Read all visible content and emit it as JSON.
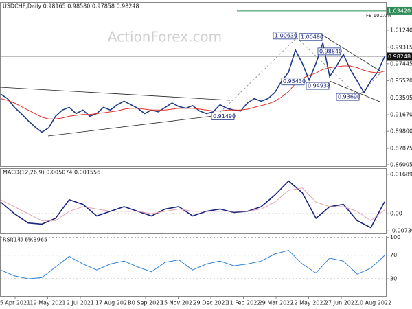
{
  "chart_data": [
    {
      "type": "line",
      "title": "USDCHF,Daily  0.98165 0.98580 0.97858 0.98248",
      "watermark": "ActionForex.com",
      "series": [
        {
          "name": "USDCHF",
          "color": "#1f3a8a",
          "values": [
            0.94,
            0.935,
            0.925,
            0.918,
            0.91,
            0.903,
            0.897,
            0.902,
            0.915,
            0.922,
            0.925,
            0.918,
            0.922,
            0.915,
            0.918,
            0.925,
            0.922,
            0.928,
            0.932,
            0.928,
            0.924,
            0.918,
            0.922,
            0.92,
            0.925,
            0.93,
            0.926,
            0.924,
            0.927,
            0.921,
            0.918,
            0.92,
            0.928,
            0.924,
            0.922,
            0.921,
            0.93,
            0.935,
            0.932,
            0.935,
            0.942,
            0.955,
            0.965,
            0.99,
            0.975,
            0.956,
            0.975,
            0.998,
            0.96,
            0.972,
            0.985,
            0.968,
            0.955,
            0.942,
            0.955,
            0.965,
            0.98248
          ]
        },
        {
          "name": "MA",
          "color": "#e0302a",
          "values": [
            0.935,
            0.933,
            0.93,
            0.926,
            0.922,
            0.918,
            0.914,
            0.912,
            0.912,
            0.913,
            0.915,
            0.916,
            0.917,
            0.917,
            0.918,
            0.919,
            0.92,
            0.921,
            0.923,
            0.924,
            0.924,
            0.923,
            0.922,
            0.922,
            0.922,
            0.923,
            0.924,
            0.924,
            0.924,
            0.923,
            0.922,
            0.921,
            0.921,
            0.922,
            0.922,
            0.922,
            0.923,
            0.925,
            0.927,
            0.929,
            0.932,
            0.937,
            0.943,
            0.952,
            0.958,
            0.961,
            0.964,
            0.968,
            0.97,
            0.971,
            0.972,
            0.972,
            0.97,
            0.967,
            0.965,
            0.964,
            0.966
          ]
        }
      ],
      "ylim": [
        0.8585,
        1.0427
      ],
      "yticks": [
        {
          "value": 1.0124,
          "label": "1.01240"
        },
        {
          "value": 0.99315,
          "label": "0.99315"
        },
        {
          "value": 0.97445,
          "label": "0.97445"
        },
        {
          "value": 0.9552,
          "label": "0.95520"
        },
        {
          "value": 0.93595,
          "label": "0.93595"
        },
        {
          "value": 0.9167,
          "label": "0.91670"
        },
        {
          "value": 0.898,
          "label": "0.89800"
        },
        {
          "value": 0.87875,
          "label": "0.87875"
        },
        {
          "value": 0.86005,
          "label": "0.86005"
        }
      ],
      "fe_level": {
        "value": 1.0342,
        "label": "1.03420",
        "name": "FE 100.0%",
        "color": "#2e8b57"
      },
      "current_price": {
        "value": 0.98248,
        "label": "0.98248"
      },
      "annotations": [
        {
          "value": 1.0063,
          "label": "1.00630"
        },
        {
          "value": 1.0048,
          "label": "1.00480"
        },
        {
          "value": 0.9884,
          "label": "0.98840"
        },
        {
          "value": 0.9543,
          "label": "0.95430"
        },
        {
          "value": 0.94938,
          "label": "0.94938"
        },
        {
          "value": 0.9369,
          "label": "0.93690"
        },
        {
          "value": 0.9149,
          "label": "0.91490"
        }
      ]
    },
    {
      "type": "line",
      "title": "MACD(12,26,9)  0.005074  0.001556",
      "series": [
        {
          "name": "MACD",
          "color": "#1a237e",
          "values": [
            0.005,
            0.0,
            -0.004,
            -0.0045,
            -0.002,
            0.006,
            0.004,
            -0.001,
            0.001,
            0.003,
            0.001,
            -0.001,
            0.002,
            0.003,
            -0.001,
            0.001,
            0.002,
            0.0005,
            0.001,
            0.003,
            0.008,
            0.014,
            0.009,
            -0.002,
            0.003,
            0.004,
            -0.003,
            -0.006,
            0.005074
          ]
        },
        {
          "name": "Signal",
          "color": "#e8a0b0",
          "values": [
            0.006,
            0.003,
            0.0,
            -0.003,
            -0.003,
            0.001,
            0.003,
            0.002,
            0.001,
            0.001,
            0.001,
            0.0,
            0.001,
            0.002,
            0.001,
            0.001,
            0.001,
            0.001,
            0.001,
            0.002,
            0.005,
            0.01,
            0.011,
            0.005,
            0.003,
            0.003,
            0.001,
            -0.003,
            0.001556
          ]
        }
      ],
      "ylim": [
        -0.0085,
        0.0192
      ],
      "yticks": [
        0.016893,
        {
          "value": 0,
          "label": "0.00"
        },
        -0.007393
      ]
    },
    {
      "type": "line",
      "title": "RSI(14) 69.3965",
      "series": [
        {
          "name": "RSI",
          "color": "#2f7fd8",
          "values": [
            45,
            35,
            30,
            32,
            50,
            68,
            55,
            45,
            55,
            60,
            50,
            42,
            58,
            62,
            45,
            55,
            60,
            52,
            55,
            60,
            72,
            78,
            55,
            40,
            65,
            60,
            38,
            48,
            69.3965
          ]
        }
      ],
      "ylim": [
        0,
        102
      ],
      "yticks": [
        100,
        70,
        30
      ],
      "x_labels": [
        "5 Apr 2021",
        "19 May 2021",
        "2 Jul 2021",
        "17 Aug 2021",
        "30 Sep 2021",
        "15 Nov 2021",
        "29 Dec 2021",
        "11 Feb 2022",
        "29 Mar 2022",
        "12 May 2022",
        "27 Jun 2022",
        "10 Aug 2022"
      ]
    }
  ]
}
